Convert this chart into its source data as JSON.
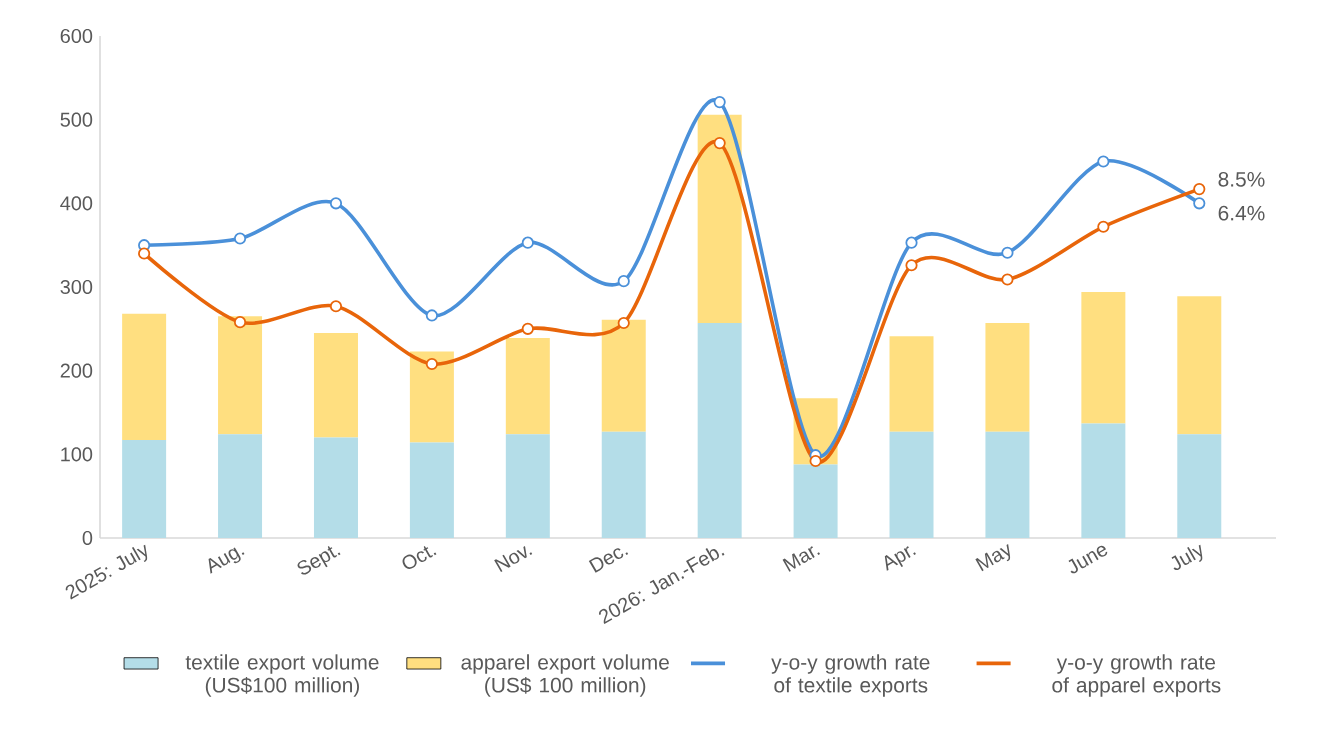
{
  "chart_data": {
    "type": "bar",
    "stacked": true,
    "categories": [
      "2025: July",
      "Aug.",
      "Sept.",
      "Oct.",
      "Nov.",
      "Dec.",
      "2026: Jan.-Feb.",
      "Mar.",
      "Apr.",
      "May",
      "June",
      "July"
    ],
    "ylim": [
      0,
      600
    ],
    "yticks": [
      0,
      100,
      200,
      300,
      400,
      500,
      600
    ],
    "legend": "bottom",
    "grid": false,
    "annotations": [
      {
        "text": "8.5%",
        "x": "July",
        "y": 417
      },
      {
        "text": "6.4%",
        "x": "July",
        "y": 400
      }
    ],
    "series": [
      {
        "name": "textile export volume (US$100 million)",
        "color": "#b4dde8",
        "values": [
          117,
          124,
          120,
          114,
          124,
          127,
          257,
          88,
          127,
          127,
          137,
          124
        ]
      },
      {
        "name": "apparel export volume (US$ 100 million)",
        "color": "#ffdf80",
        "values": [
          151,
          141,
          125,
          109,
          115,
          134,
          249,
          79,
          114,
          130,
          157,
          165
        ]
      },
      {
        "name": "y-o-y growth rate of textile exports",
        "type": "line",
        "color": "#4a90d9",
        "marker": "circle",
        "values": [
          350,
          358,
          400,
          266,
          353,
          307,
          521,
          99,
          353,
          341,
          450,
          400
        ]
      },
      {
        "name": "y-o-y growth rate of apparel exports",
        "type": "line",
        "color": "#e8650a",
        "marker": "circle",
        "values": [
          340,
          258,
          277,
          208,
          250,
          257,
          472,
          92,
          326,
          309,
          372,
          417
        ]
      }
    ]
  }
}
